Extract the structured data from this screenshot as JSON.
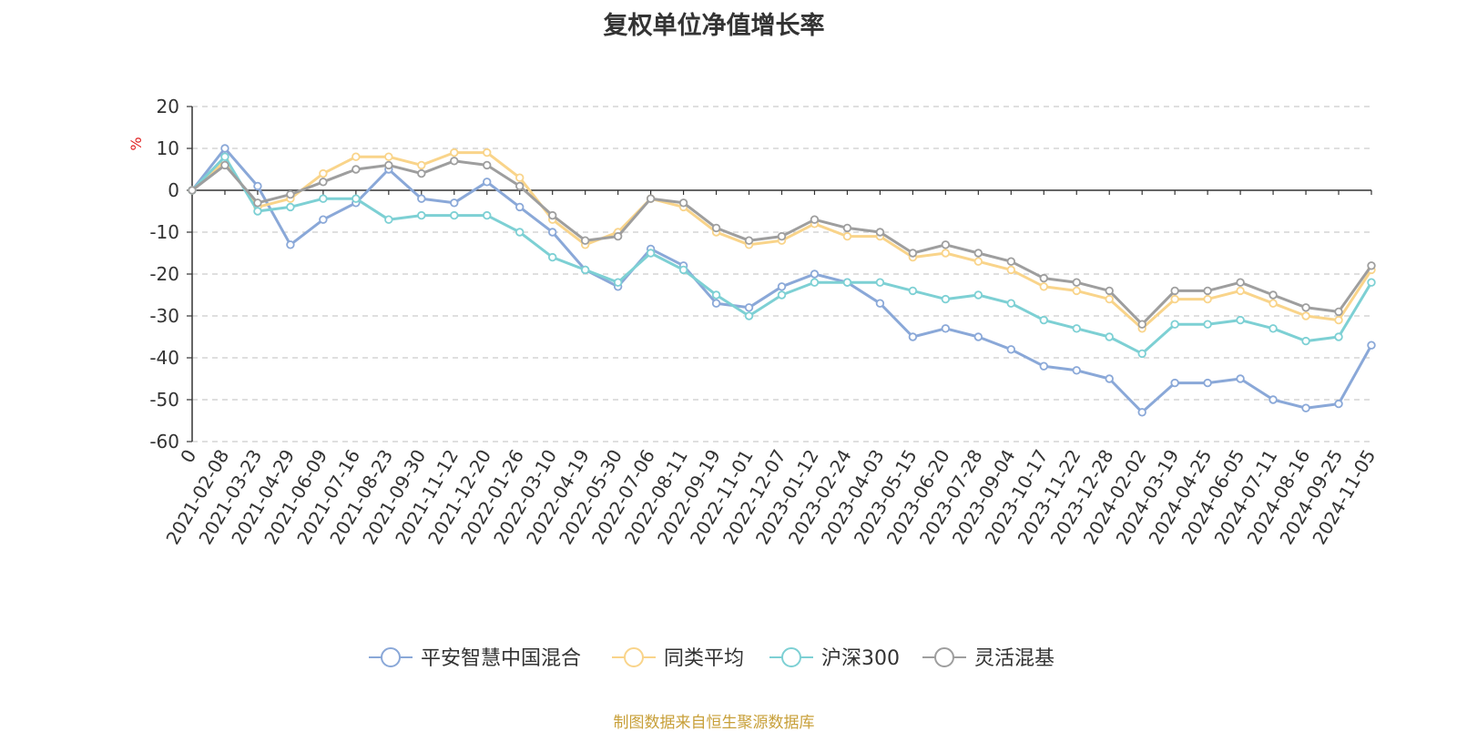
{
  "chart_data": {
    "type": "line",
    "title": "复权单位净值增长率",
    "ylabel": "%",
    "ylim": [
      -60,
      20
    ],
    "yticks": [
      20,
      10,
      0,
      -10,
      -20,
      -30,
      -40,
      -50,
      -60
    ],
    "grid": true,
    "legend_position": "bottom",
    "source": "制图数据来自恒生聚源数据库",
    "x_labels": [
      "0",
      "2021-02-08",
      "2021-03-23",
      "2021-04-29",
      "2021-06-09",
      "2021-07-16",
      "2021-08-23",
      "2021-09-30",
      "2021-11-12",
      "2021-12-20",
      "2022-01-26",
      "2022-03-10",
      "2022-04-19",
      "2022-05-30",
      "2022-07-06",
      "2022-08-11",
      "2022-09-19",
      "2022-11-01",
      "2022-12-07",
      "2023-01-12",
      "2023-02-24",
      "2023-04-03",
      "2023-05-15",
      "2023-06-20",
      "2023-07-28",
      "2023-09-04",
      "2023-10-17",
      "2023-11-22",
      "2023-12-28",
      "2024-02-02",
      "2024-03-19",
      "2024-04-25",
      "2024-06-05",
      "2024-07-11",
      "2024-08-16",
      "2024-09-25",
      "2024-11-05"
    ],
    "series": [
      {
        "name": "平安智慧中国混合",
        "color": "#8aa8d8",
        "values": [
          0,
          10,
          1,
          -13,
          -7,
          -3,
          5,
          -2,
          -3,
          2,
          -4,
          -10,
          -19,
          -23,
          -14,
          -18,
          -27,
          -28,
          -23,
          -20,
          -22,
          -27,
          -35,
          -33,
          -35,
          -38,
          -42,
          -43,
          -45,
          -53,
          -46,
          -46,
          -45,
          -50,
          -52,
          -51,
          -37
        ]
      },
      {
        "name": "同类平均",
        "color": "#f9d48a",
        "values": [
          0,
          7,
          -4,
          -2,
          4,
          8,
          8,
          6,
          9,
          9,
          3,
          -7,
          -13,
          -10,
          -2,
          -4,
          -10,
          -13,
          -12,
          -8,
          -11,
          -11,
          -16,
          -15,
          -17,
          -19,
          -23,
          -24,
          -26,
          -33,
          -26,
          -26,
          -24,
          -27,
          -30,
          -31,
          -19
        ]
      },
      {
        "name": "沪深300",
        "color": "#7dd0d4",
        "values": [
          0,
          8,
          -5,
          -4,
          -2,
          -2,
          -7,
          -6,
          -6,
          -6,
          -10,
          -16,
          -19,
          -22,
          -15,
          -19,
          -25,
          -30,
          -25,
          -22,
          -22,
          -22,
          -24,
          -26,
          -25,
          -27,
          -31,
          -33,
          -35,
          -39,
          -32,
          -32,
          -31,
          -33,
          -36,
          -35,
          -22
        ]
      },
      {
        "name": "灵活混基",
        "color": "#9e9e9e",
        "values": [
          0,
          6,
          -3,
          -1,
          2,
          5,
          6,
          4,
          7,
          6,
          1,
          -6,
          -12,
          -11,
          -2,
          -3,
          -9,
          -12,
          -11,
          -7,
          -9,
          -10,
          -15,
          -13,
          -15,
          -17,
          -21,
          -22,
          -24,
          -32,
          -24,
          -24,
          -22,
          -25,
          -28,
          -29,
          -18
        ]
      }
    ]
  }
}
